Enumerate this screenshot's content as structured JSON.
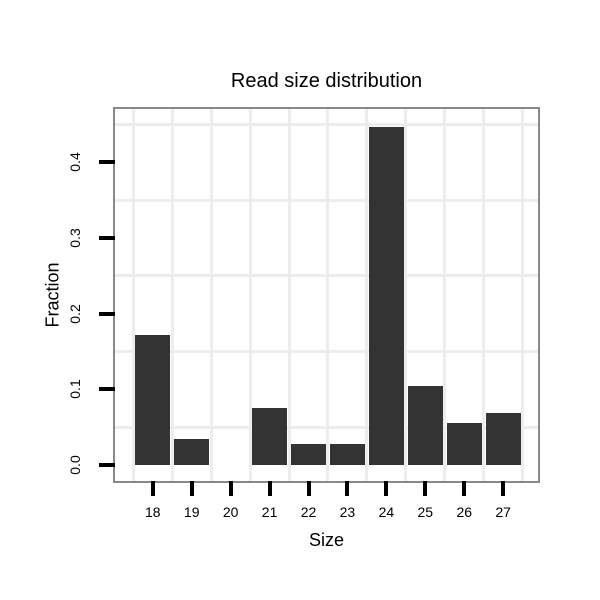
{
  "figure": {
    "title": "Read size distribution"
  },
  "chart_data": {
    "type": "bar",
    "title": "Read size distribution",
    "xlabel": "Size",
    "ylabel": "Fraction",
    "categories": [
      "18",
      "19",
      "20",
      "21",
      "22",
      "23",
      "24",
      "25",
      "26",
      "27"
    ],
    "values": [
      0.172,
      0.034,
      0,
      0.075,
      0.028,
      0.028,
      0.447,
      0.104,
      0.056,
      0.069
    ],
    "ytick_labels": [
      "0.0",
      "0.1",
      "0.2",
      "0.3",
      "0.4"
    ],
    "ytick_values": [
      0,
      0.1,
      0.2,
      0.3,
      0.4
    ],
    "ylim": [
      -0.021,
      0.47
    ],
    "legend": "none",
    "grid": "minor-only",
    "minor_grid_y_values": [
      0.05,
      0.15,
      0.25,
      0.35,
      0.45
    ],
    "colors": {
      "bar": "#333333",
      "panel_border": "#898989",
      "gridline": "#EDEDED",
      "tick": "#000000",
      "text": "#000000",
      "background": "#FFFFFF"
    }
  }
}
